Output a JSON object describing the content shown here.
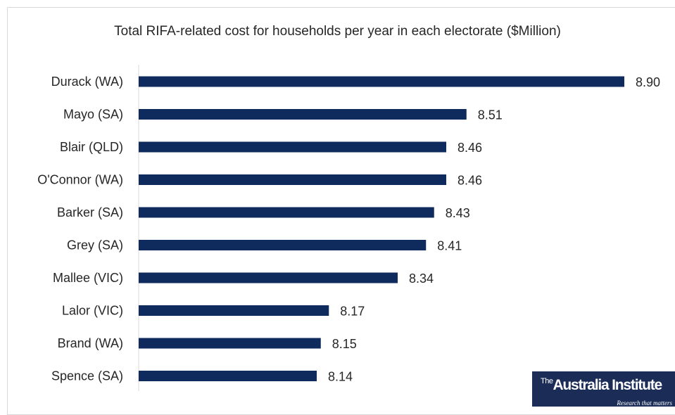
{
  "chart_data": {
    "type": "bar",
    "orientation": "horizontal",
    "title": "Total RIFA-related cost for households per year in each electorate ($Million)",
    "categories": [
      "Durack (WA)",
      "Mayo (SA)",
      "Blair (QLD)",
      "O'Connor (WA)",
      "Barker (SA)",
      "Grey (SA)",
      "Mallee (VIC)",
      "Lalor (VIC)",
      "Brand (WA)",
      "Spence (SA)"
    ],
    "values": [
      8.9,
      8.51,
      8.46,
      8.46,
      8.43,
      8.41,
      8.34,
      8.17,
      8.15,
      8.14
    ],
    "value_labels": [
      "8.90",
      "8.51",
      "8.46",
      "8.46",
      "8.43",
      "8.41",
      "8.34",
      "8.17",
      "8.15",
      "8.14"
    ],
    "xlim": [
      7.7,
      8.9
    ],
    "bar_color": "#0f2a5c",
    "grid": false,
    "legend": "none"
  },
  "logo": {
    "the": "The",
    "name": "Australia Institute",
    "tagline": "Research that matters"
  }
}
